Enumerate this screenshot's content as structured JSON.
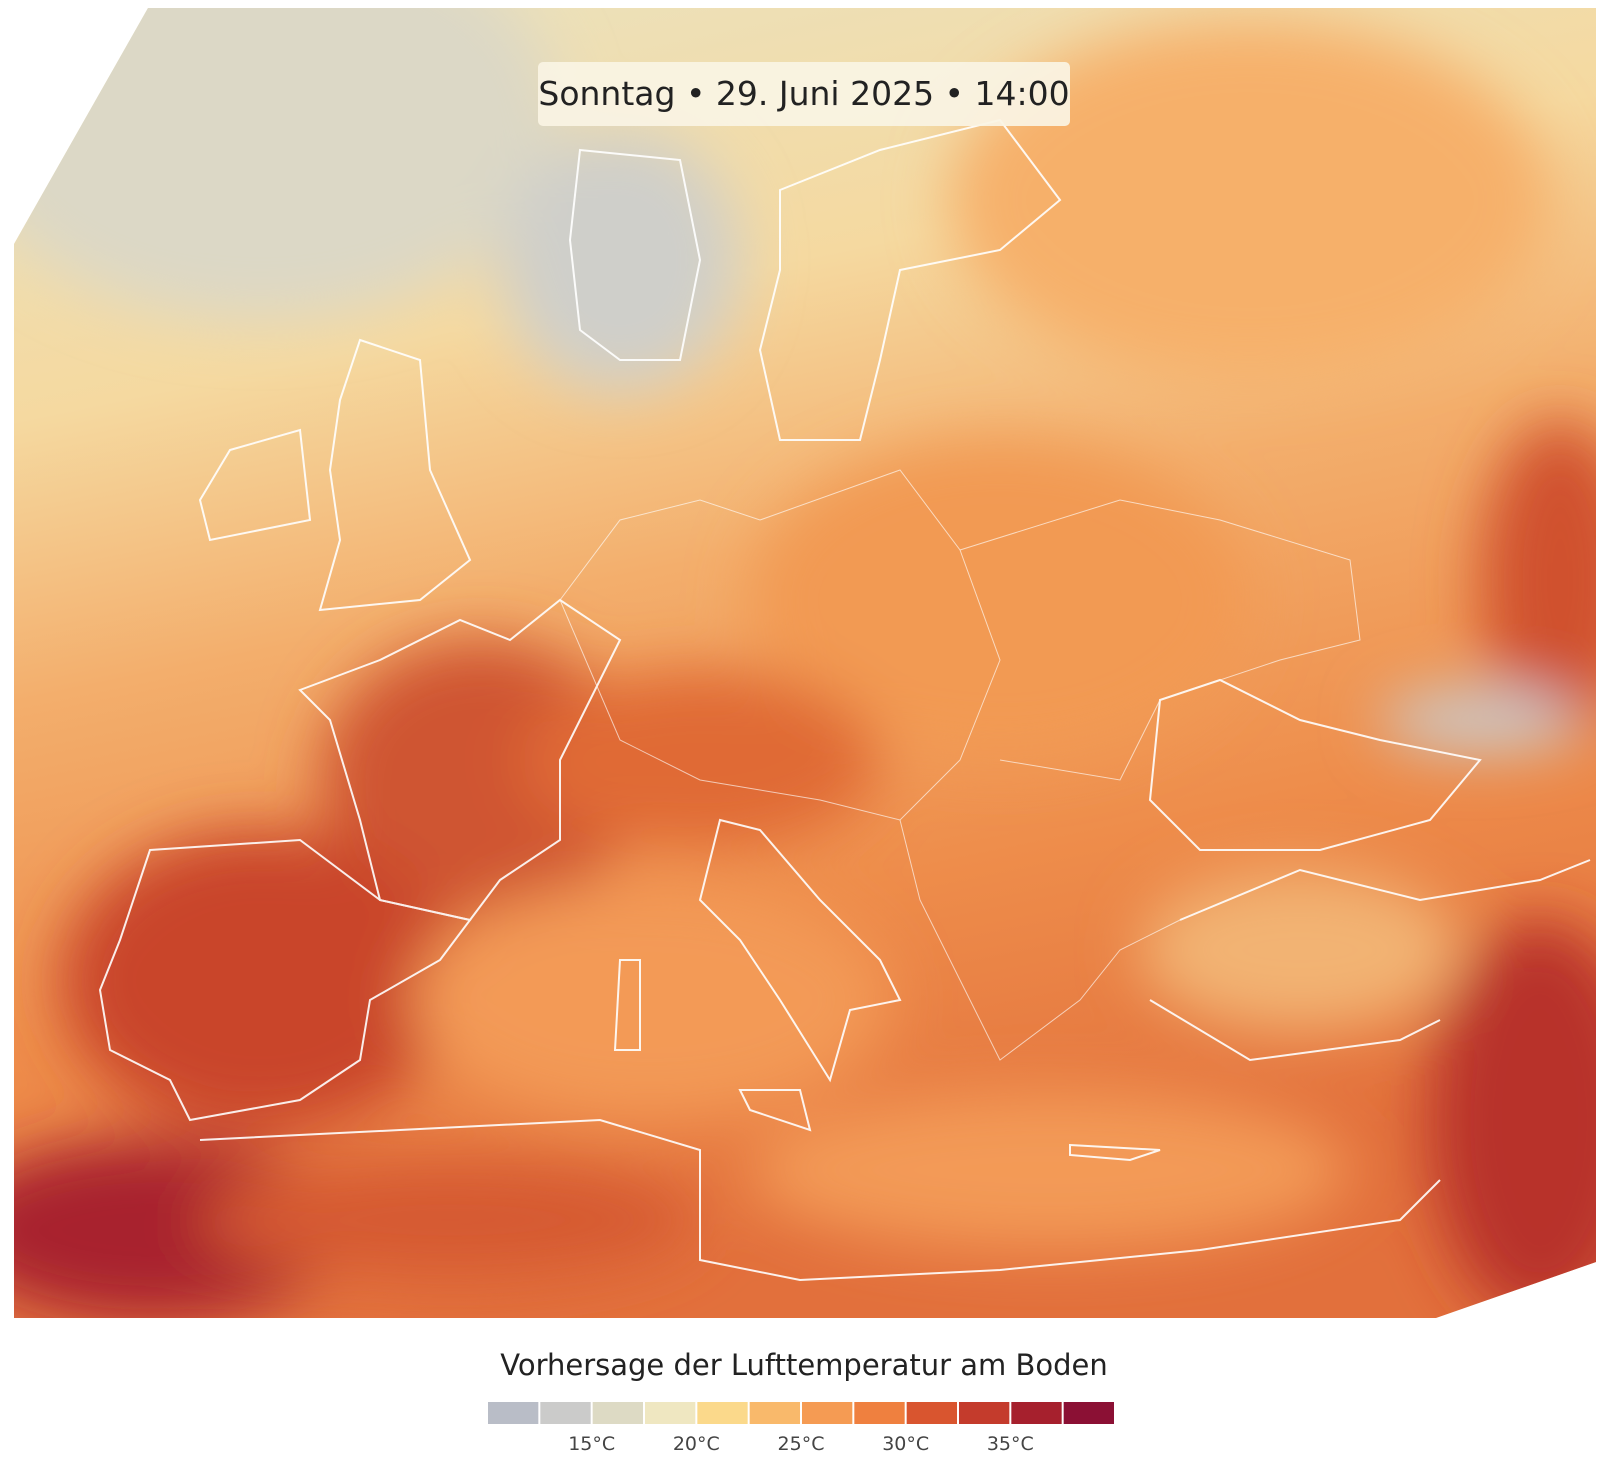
{
  "map": {
    "timestamp": "Sonntag • 29. Juni 2025 • 14:00"
  },
  "legend": {
    "title": "Vorhersage der Lufttemperatur am Boden",
    "colors": [
      "#b9bdc7",
      "#cbcbca",
      "#dddac4",
      "#efe7c1",
      "#fbd98b",
      "#f9b96b",
      "#f59b53",
      "#ef803f",
      "#d9552f",
      "#c43b2c",
      "#a6202d",
      "#8b1034"
    ],
    "labels": [
      "15°C",
      "20°C",
      "25°C",
      "30°C",
      "35°C"
    ]
  }
}
